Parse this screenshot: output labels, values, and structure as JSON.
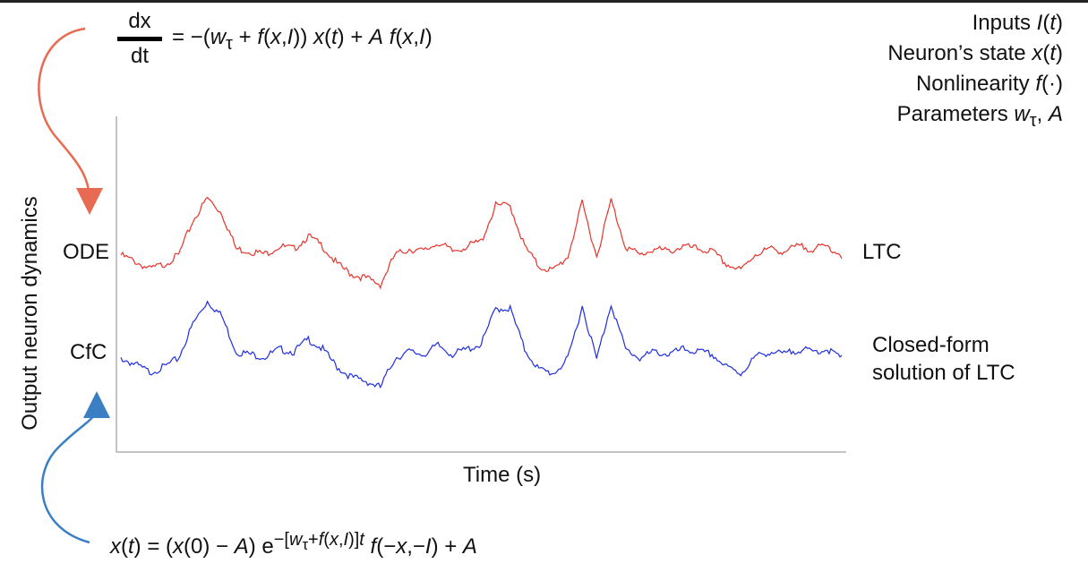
{
  "equations": {
    "ode_numerator": "dx",
    "ode_denominator": "dt",
    "ode_rhs": "= −(w<sub>τ</sub> + f(x,I)) x(t) + A f(x,I)",
    "cfc": "x(t) = (x(0) − A) e<sup>−[w<sub>τ</sub>+f(x,I)]t</sup> f(−x,−I) + A"
  },
  "legend": [
    "Inputs I(t)",
    "Neuron’s state x(t)",
    "Nonlinearity f(·)",
    "Parameters w_τ, A"
  ],
  "colors": {
    "ode": "#e8332a",
    "cfc": "#1f2ee0",
    "ode_arrow": "#e86a52",
    "cfc_arrow": "#3a7fc4"
  },
  "chart_data": {
    "type": "line",
    "title": "",
    "xlabel": "Time (s)",
    "ylabel": "Output neuron dynamics",
    "row_labels": [
      "ODE",
      "CfC"
    ],
    "grid": false,
    "x": [
      0,
      0.02,
      0.04,
      0.06,
      0.08,
      0.1,
      0.12,
      0.14,
      0.16,
      0.18,
      0.2,
      0.22,
      0.24,
      0.26,
      0.28,
      0.3,
      0.32,
      0.34,
      0.36,
      0.38,
      0.4,
      0.42,
      0.44,
      0.46,
      0.48,
      0.5,
      0.52,
      0.54,
      0.56,
      0.58,
      0.6,
      0.62,
      0.64,
      0.66,
      0.68,
      0.7,
      0.72,
      0.74,
      0.76,
      0.78,
      0.8,
      0.82,
      0.84,
      0.86,
      0.88,
      0.9,
      0.92,
      0.94,
      0.96,
      0.98,
      1.0
    ],
    "series": [
      {
        "name": "LTC",
        "color": "#e8332a",
        "values": [
          0.45,
          0.4,
          0.34,
          0.38,
          0.45,
          0.72,
          0.9,
          0.78,
          0.5,
          0.48,
          0.46,
          0.52,
          0.5,
          0.6,
          0.52,
          0.38,
          0.3,
          0.27,
          0.22,
          0.45,
          0.5,
          0.48,
          0.55,
          0.48,
          0.52,
          0.56,
          0.84,
          0.84,
          0.52,
          0.36,
          0.33,
          0.44,
          0.86,
          0.44,
          0.88,
          0.52,
          0.45,
          0.5,
          0.48,
          0.52,
          0.5,
          0.48,
          0.38,
          0.33,
          0.46,
          0.5,
          0.48,
          0.52,
          0.5,
          0.52,
          0.45
        ]
      },
      {
        "name": "Closed-form solution of LTC",
        "color": "#1f2ee0",
        "values": [
          0.45,
          0.4,
          0.34,
          0.38,
          0.45,
          0.72,
          0.9,
          0.78,
          0.5,
          0.48,
          0.46,
          0.52,
          0.5,
          0.6,
          0.52,
          0.38,
          0.3,
          0.27,
          0.22,
          0.45,
          0.5,
          0.48,
          0.55,
          0.48,
          0.52,
          0.56,
          0.84,
          0.84,
          0.52,
          0.36,
          0.33,
          0.44,
          0.86,
          0.44,
          0.88,
          0.52,
          0.45,
          0.5,
          0.48,
          0.52,
          0.5,
          0.48,
          0.38,
          0.33,
          0.46,
          0.5,
          0.48,
          0.52,
          0.5,
          0.52,
          0.45
        ]
      }
    ]
  }
}
